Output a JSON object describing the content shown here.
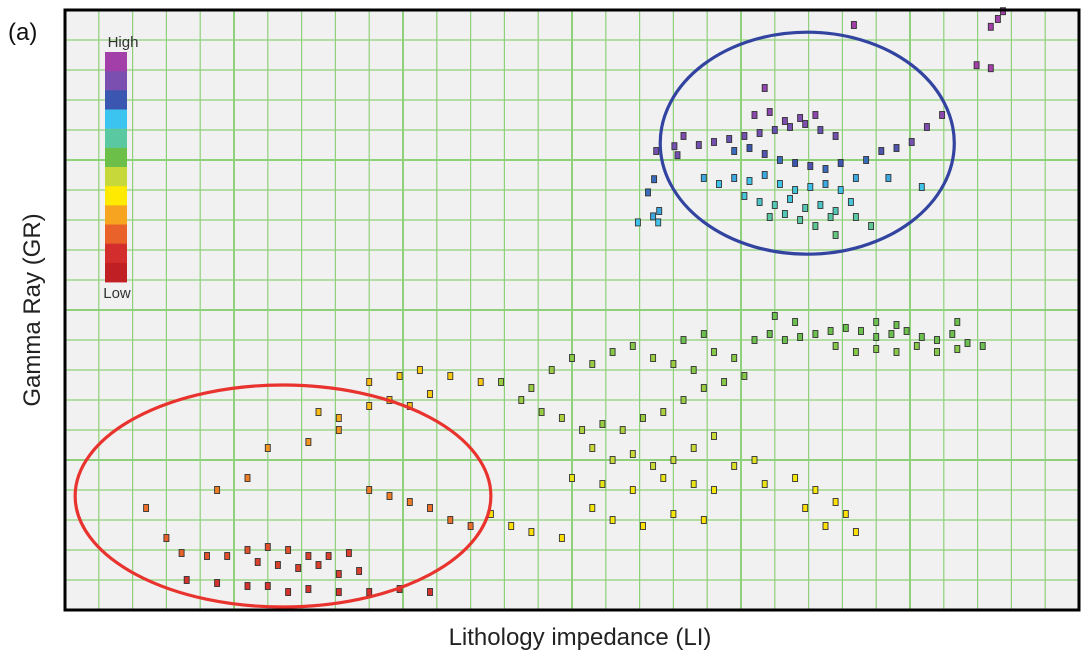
{
  "panel_label": "(a)",
  "chart_data": {
    "type": "scatter",
    "xlabel": "Lithology impedance (LI)",
    "ylabel": "Gamma Ray (GR)",
    "xlim": [
      0,
      1
    ],
    "ylim": [
      0,
      1
    ],
    "grid": true,
    "colorbar": {
      "high_label": "High",
      "low_label": "Low",
      "colors": [
        "#a23fa8",
        "#7a4fb0",
        "#3a56b0",
        "#3cc4f0",
        "#5ac8a0",
        "#6cc04a",
        "#c6d83a",
        "#ffea00",
        "#f7a520",
        "#e8622a",
        "#d42d2d",
        "#c01f24"
      ]
    },
    "ellipses": [
      {
        "color": "#3244a0",
        "cx": 0.732,
        "cy": 0.778,
        "rx": 0.145,
        "ry": 0.185
      },
      {
        "color": "#e8332e",
        "cx": 0.215,
        "cy": 0.19,
        "rx": 0.205,
        "ry": 0.185
      }
    ],
    "points": [
      [
        0.925,
        0.998,
        1.0
      ],
      [
        0.92,
        0.985,
        1.0
      ],
      [
        0.913,
        0.972,
        1.0
      ],
      [
        0.899,
        0.908,
        1.0
      ],
      [
        0.913,
        0.903,
        1.0
      ],
      [
        0.778,
        0.975,
        1.0
      ],
      [
        0.583,
        0.765,
        0.9
      ],
      [
        0.601,
        0.773,
        0.9
      ],
      [
        0.604,
        0.758,
        0.9
      ],
      [
        0.581,
        0.718,
        0.8
      ],
      [
        0.575,
        0.696,
        0.8
      ],
      [
        0.586,
        0.665,
        0.75
      ],
      [
        0.58,
        0.656,
        0.75
      ],
      [
        0.565,
        0.646,
        0.72
      ],
      [
        0.585,
        0.646,
        0.72
      ],
      [
        0.61,
        0.79,
        0.92
      ],
      [
        0.625,
        0.775,
        0.9
      ],
      [
        0.64,
        0.78,
        0.9
      ],
      [
        0.655,
        0.785,
        0.88
      ],
      [
        0.67,
        0.79,
        0.9
      ],
      [
        0.685,
        0.795,
        0.9
      ],
      [
        0.7,
        0.8,
        0.88
      ],
      [
        0.715,
        0.805,
        0.9
      ],
      [
        0.73,
        0.81,
        0.92
      ],
      [
        0.745,
        0.8,
        0.88
      ],
      [
        0.76,
        0.79,
        0.9
      ],
      [
        0.66,
        0.765,
        0.8
      ],
      [
        0.675,
        0.77,
        0.82
      ],
      [
        0.69,
        0.76,
        0.85
      ],
      [
        0.705,
        0.75,
        0.8
      ],
      [
        0.72,
        0.745,
        0.82
      ],
      [
        0.735,
        0.74,
        0.85
      ],
      [
        0.75,
        0.735,
        0.8
      ],
      [
        0.765,
        0.745,
        0.82
      ],
      [
        0.68,
        0.825,
        0.95
      ],
      [
        0.695,
        0.83,
        0.95
      ],
      [
        0.71,
        0.815,
        0.92
      ],
      [
        0.725,
        0.82,
        0.92
      ],
      [
        0.74,
        0.825,
        0.95
      ],
      [
        0.63,
        0.72,
        0.75
      ],
      [
        0.645,
        0.71,
        0.72
      ],
      [
        0.66,
        0.72,
        0.75
      ],
      [
        0.675,
        0.715,
        0.72
      ],
      [
        0.69,
        0.725,
        0.75
      ],
      [
        0.705,
        0.71,
        0.72
      ],
      [
        0.72,
        0.7,
        0.7
      ],
      [
        0.735,
        0.705,
        0.72
      ],
      [
        0.75,
        0.71,
        0.75
      ],
      [
        0.765,
        0.7,
        0.72
      ],
      [
        0.78,
        0.72,
        0.75
      ],
      [
        0.67,
        0.69,
        0.7
      ],
      [
        0.685,
        0.68,
        0.68
      ],
      [
        0.7,
        0.675,
        0.66
      ],
      [
        0.715,
        0.685,
        0.7
      ],
      [
        0.73,
        0.67,
        0.66
      ],
      [
        0.745,
        0.675,
        0.68
      ],
      [
        0.76,
        0.665,
        0.66
      ],
      [
        0.775,
        0.68,
        0.7
      ],
      [
        0.695,
        0.655,
        0.64
      ],
      [
        0.71,
        0.66,
        0.66
      ],
      [
        0.725,
        0.65,
        0.64
      ],
      [
        0.74,
        0.64,
        0.62
      ],
      [
        0.755,
        0.655,
        0.64
      ],
      [
        0.79,
        0.75,
        0.8
      ],
      [
        0.805,
        0.765,
        0.85
      ],
      [
        0.82,
        0.77,
        0.85
      ],
      [
        0.835,
        0.78,
        0.9
      ],
      [
        0.85,
        0.805,
        0.92
      ],
      [
        0.865,
        0.825,
        0.95
      ],
      [
        0.845,
        0.705,
        0.72
      ],
      [
        0.812,
        0.72,
        0.75
      ],
      [
        0.78,
        0.655,
        0.64
      ],
      [
        0.795,
        0.64,
        0.62
      ],
      [
        0.76,
        0.625,
        0.6
      ],
      [
        0.69,
        0.87,
        0.95
      ],
      [
        0.68,
        0.45,
        0.55
      ],
      [
        0.695,
        0.46,
        0.55
      ],
      [
        0.71,
        0.45,
        0.55
      ],
      [
        0.725,
        0.455,
        0.55
      ],
      [
        0.74,
        0.46,
        0.55
      ],
      [
        0.755,
        0.465,
        0.55
      ],
      [
        0.77,
        0.47,
        0.55
      ],
      [
        0.785,
        0.465,
        0.55
      ],
      [
        0.8,
        0.455,
        0.55
      ],
      [
        0.815,
        0.46,
        0.55
      ],
      [
        0.83,
        0.465,
        0.55
      ],
      [
        0.845,
        0.455,
        0.55
      ],
      [
        0.86,
        0.45,
        0.55
      ],
      [
        0.875,
        0.46,
        0.55
      ],
      [
        0.89,
        0.445,
        0.55
      ],
      [
        0.905,
        0.44,
        0.55
      ],
      [
        0.76,
        0.44,
        0.52
      ],
      [
        0.78,
        0.43,
        0.52
      ],
      [
        0.8,
        0.435,
        0.52
      ],
      [
        0.82,
        0.43,
        0.52
      ],
      [
        0.84,
        0.44,
        0.52
      ],
      [
        0.86,
        0.43,
        0.52
      ],
      [
        0.88,
        0.435,
        0.52
      ],
      [
        0.7,
        0.49,
        0.55
      ],
      [
        0.72,
        0.48,
        0.55
      ],
      [
        0.8,
        0.48,
        0.55
      ],
      [
        0.82,
        0.475,
        0.55
      ],
      [
        0.88,
        0.48,
        0.55
      ],
      [
        0.45,
        0.35,
        0.5
      ],
      [
        0.47,
        0.33,
        0.5
      ],
      [
        0.49,
        0.32,
        0.48
      ],
      [
        0.51,
        0.3,
        0.48
      ],
      [
        0.53,
        0.31,
        0.5
      ],
      [
        0.55,
        0.3,
        0.48
      ],
      [
        0.57,
        0.32,
        0.5
      ],
      [
        0.59,
        0.33,
        0.48
      ],
      [
        0.61,
        0.35,
        0.5
      ],
      [
        0.63,
        0.37,
        0.5
      ],
      [
        0.65,
        0.38,
        0.52
      ],
      [
        0.67,
        0.39,
        0.52
      ],
      [
        0.52,
        0.27,
        0.45
      ],
      [
        0.54,
        0.25,
        0.45
      ],
      [
        0.56,
        0.26,
        0.45
      ],
      [
        0.58,
        0.24,
        0.45
      ],
      [
        0.6,
        0.25,
        0.45
      ],
      [
        0.62,
        0.27,
        0.45
      ],
      [
        0.64,
        0.29,
        0.45
      ],
      [
        0.66,
        0.24,
        0.42
      ],
      [
        0.68,
        0.25,
        0.42
      ],
      [
        0.5,
        0.22,
        0.4
      ],
      [
        0.53,
        0.21,
        0.4
      ],
      [
        0.56,
        0.2,
        0.38
      ],
      [
        0.59,
        0.22,
        0.4
      ],
      [
        0.62,
        0.21,
        0.4
      ],
      [
        0.64,
        0.2,
        0.38
      ],
      [
        0.69,
        0.21,
        0.4
      ],
      [
        0.43,
        0.38,
        0.5
      ],
      [
        0.46,
        0.37,
        0.5
      ],
      [
        0.48,
        0.4,
        0.5
      ],
      [
        0.5,
        0.42,
        0.52
      ],
      [
        0.52,
        0.41,
        0.5
      ],
      [
        0.54,
        0.43,
        0.52
      ],
      [
        0.56,
        0.44,
        0.52
      ],
      [
        0.58,
        0.42,
        0.5
      ],
      [
        0.6,
        0.41,
        0.5
      ],
      [
        0.62,
        0.4,
        0.52
      ],
      [
        0.64,
        0.43,
        0.52
      ],
      [
        0.66,
        0.42,
        0.52
      ],
      [
        0.61,
        0.45,
        0.55
      ],
      [
        0.63,
        0.46,
        0.55
      ],
      [
        0.72,
        0.22,
        0.38
      ],
      [
        0.74,
        0.2,
        0.38
      ],
      [
        0.76,
        0.18,
        0.35
      ],
      [
        0.73,
        0.17,
        0.35
      ],
      [
        0.77,
        0.16,
        0.35
      ],
      [
        0.75,
        0.14,
        0.35
      ],
      [
        0.78,
        0.13,
        0.35
      ],
      [
        0.52,
        0.17,
        0.38
      ],
      [
        0.54,
        0.15,
        0.38
      ],
      [
        0.57,
        0.14,
        0.35
      ],
      [
        0.6,
        0.16,
        0.38
      ],
      [
        0.63,
        0.15,
        0.35
      ],
      [
        0.42,
        0.16,
        0.35
      ],
      [
        0.44,
        0.14,
        0.35
      ],
      [
        0.46,
        0.13,
        0.35
      ],
      [
        0.49,
        0.12,
        0.35
      ],
      [
        0.08,
        0.17,
        0.2
      ],
      [
        0.1,
        0.12,
        0.18
      ],
      [
        0.115,
        0.095,
        0.18
      ],
      [
        0.14,
        0.09,
        0.15
      ],
      [
        0.16,
        0.09,
        0.15
      ],
      [
        0.18,
        0.1,
        0.15
      ],
      [
        0.2,
        0.105,
        0.15
      ],
      [
        0.22,
        0.1,
        0.15
      ],
      [
        0.24,
        0.09,
        0.12
      ],
      [
        0.26,
        0.09,
        0.12
      ],
      [
        0.28,
        0.095,
        0.12
      ],
      [
        0.19,
        0.08,
        0.12
      ],
      [
        0.21,
        0.075,
        0.12
      ],
      [
        0.23,
        0.07,
        0.12
      ],
      [
        0.25,
        0.075,
        0.12
      ],
      [
        0.27,
        0.06,
        0.12
      ],
      [
        0.29,
        0.065,
        0.12
      ],
      [
        0.12,
        0.05,
        0.1
      ],
      [
        0.15,
        0.045,
        0.1
      ],
      [
        0.18,
        0.04,
        0.1
      ],
      [
        0.2,
        0.04,
        0.1
      ],
      [
        0.22,
        0.03,
        0.1
      ],
      [
        0.24,
        0.035,
        0.1
      ],
      [
        0.27,
        0.03,
        0.1
      ],
      [
        0.3,
        0.03,
        0.1
      ],
      [
        0.33,
        0.035,
        0.1
      ],
      [
        0.36,
        0.03,
        0.1
      ],
      [
        0.2,
        0.27,
        0.25
      ],
      [
        0.24,
        0.28,
        0.25
      ],
      [
        0.27,
        0.3,
        0.25
      ],
      [
        0.3,
        0.2,
        0.22
      ],
      [
        0.32,
        0.19,
        0.22
      ],
      [
        0.34,
        0.18,
        0.22
      ],
      [
        0.36,
        0.17,
        0.2
      ],
      [
        0.38,
        0.15,
        0.2
      ],
      [
        0.4,
        0.14,
        0.2
      ],
      [
        0.25,
        0.33,
        0.3
      ],
      [
        0.27,
        0.32,
        0.28
      ],
      [
        0.3,
        0.34,
        0.3
      ],
      [
        0.32,
        0.35,
        0.3
      ],
      [
        0.34,
        0.34,
        0.3
      ],
      [
        0.36,
        0.36,
        0.32
      ],
      [
        0.3,
        0.38,
        0.3
      ],
      [
        0.33,
        0.39,
        0.32
      ],
      [
        0.35,
        0.4,
        0.32
      ],
      [
        0.38,
        0.39,
        0.32
      ],
      [
        0.41,
        0.38,
        0.32
      ],
      [
        0.15,
        0.2,
        0.22
      ],
      [
        0.18,
        0.22,
        0.22
      ]
    ]
  }
}
